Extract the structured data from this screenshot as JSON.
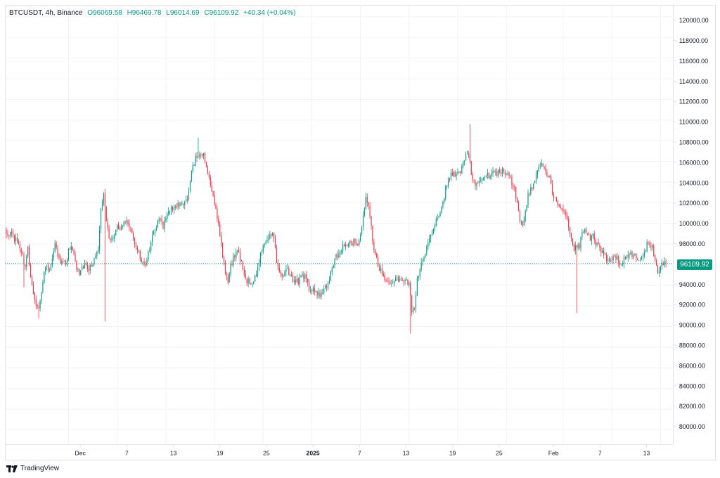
{
  "legend": {
    "symbol": "BTCUSDT, 4h, Binance",
    "open": "O96069.58",
    "high": "H96469.78",
    "low": "L96014.69",
    "close": "C96109.92",
    "change": "+40.34 (+0.04%)"
  },
  "last_price_label": "96109.92",
  "branding": "TradingView",
  "colors": {
    "up": "#089981",
    "down": "#f23645",
    "grid": "#f0f3fa",
    "border": "#e0e3eb"
  },
  "chart_data": {
    "type": "candlestick",
    "symbol": "BTCUSDT",
    "interval": "4h",
    "exchange": "Binance",
    "y_ticks": [
      "80000.00",
      "82000.00",
      "84000.00",
      "86000.00",
      "88000.00",
      "90000.00",
      "92000.00",
      "94000.00",
      "96000.00",
      "98000.00",
      "100000.00",
      "102000.00",
      "104000.00",
      "106000.00",
      "108000.00",
      "110000.00",
      "112000.00",
      "114000.00",
      "116000.00",
      "118000.00",
      "120000.00"
    ],
    "x_ticks": [
      {
        "label": "Dec",
        "index": 46,
        "bold": false
      },
      {
        "label": "7",
        "index": 82,
        "bold": false
      },
      {
        "label": "13",
        "index": 118,
        "bold": false
      },
      {
        "label": "19",
        "index": 154,
        "bold": false
      },
      {
        "label": "25",
        "index": 190,
        "bold": false
      },
      {
        "label": "2025",
        "index": 226,
        "bold": true
      },
      {
        "label": "7",
        "index": 262,
        "bold": false
      },
      {
        "label": "13",
        "index": 298,
        "bold": false
      },
      {
        "label": "19",
        "index": 334,
        "bold": false
      },
      {
        "label": "25",
        "index": 370,
        "bold": false
      },
      {
        "label": "Feb",
        "index": 412,
        "bold": false
      },
      {
        "label": "7",
        "index": 448,
        "bold": false
      },
      {
        "label": "13",
        "index": 484,
        "bold": false
      }
    ],
    "y_range": [
      78600,
      121150
    ],
    "x_range": [
      0,
      489
    ],
    "last_price": 96109.92,
    "close_anchors": [
      [
        0,
        99200
      ],
      [
        4,
        98900
      ],
      [
        8,
        98200
      ],
      [
        12,
        96800
      ],
      [
        14,
        95800
      ],
      [
        16,
        97600
      ],
      [
        18,
        94500
      ],
      [
        20,
        93200
      ],
      [
        22,
        92300
      ],
      [
        24,
        92000
      ],
      [
        26,
        93600
      ],
      [
        28,
        95400
      ],
      [
        30,
        96100
      ],
      [
        32,
        95300
      ],
      [
        34,
        96500
      ],
      [
        36,
        97900
      ],
      [
        38,
        96900
      ],
      [
        40,
        96300
      ],
      [
        42,
        96100
      ],
      [
        44,
        96200
      ],
      [
        46,
        97300
      ],
      [
        48,
        97900
      ],
      [
        50,
        96900
      ],
      [
        52,
        95600
      ],
      [
        54,
        95300
      ],
      [
        56,
        95900
      ],
      [
        58,
        96000
      ],
      [
        60,
        95600
      ],
      [
        62,
        95700
      ],
      [
        64,
        96300
      ],
      [
        66,
        96500
      ],
      [
        68,
        97400
      ],
      [
        70,
        101300
      ],
      [
        72,
        102900
      ],
      [
        74,
        99900
      ],
      [
        76,
        98700
      ],
      [
        78,
        98300
      ],
      [
        80,
        99100
      ],
      [
        82,
        99900
      ],
      [
        84,
        99200
      ],
      [
        86,
        99800
      ],
      [
        88,
        100300
      ],
      [
        90,
        100000
      ],
      [
        92,
        99400
      ],
      [
        94,
        98400
      ],
      [
        96,
        97800
      ],
      [
        98,
        97200
      ],
      [
        100,
        96400
      ],
      [
        102,
        95900
      ],
      [
        104,
        96300
      ],
      [
        106,
        97600
      ],
      [
        108,
        98800
      ],
      [
        110,
        99400
      ],
      [
        112,
        100300
      ],
      [
        114,
        100600
      ],
      [
        116,
        99800
      ],
      [
        118,
        100400
      ],
      [
        120,
        101300
      ],
      [
        122,
        101400
      ],
      [
        124,
        101600
      ],
      [
        126,
        101800
      ],
      [
        128,
        101900
      ],
      [
        130,
        102100
      ],
      [
        132,
        101900
      ],
      [
        134,
        102600
      ],
      [
        136,
        104200
      ],
      [
        138,
        105400
      ],
      [
        140,
        106400
      ],
      [
        142,
        106600
      ],
      [
        144,
        106900
      ],
      [
        146,
        106600
      ],
      [
        148,
        105300
      ],
      [
        150,
        104200
      ],
      [
        152,
        103000
      ],
      [
        154,
        101900
      ],
      [
        156,
        100500
      ],
      [
        158,
        99000
      ],
      [
        160,
        97000
      ],
      [
        162,
        95300
      ],
      [
        164,
        94100
      ],
      [
        166,
        95800
      ],
      [
        168,
        96600
      ],
      [
        170,
        97400
      ],
      [
        172,
        96900
      ],
      [
        174,
        96100
      ],
      [
        176,
        95300
      ],
      [
        178,
        94500
      ],
      [
        180,
        94300
      ],
      [
        182,
        94000
      ],
      [
        184,
        94700
      ],
      [
        186,
        95600
      ],
      [
        188,
        97000
      ],
      [
        190,
        98000
      ],
      [
        192,
        98400
      ],
      [
        194,
        98700
      ],
      [
        196,
        99100
      ],
      [
        198,
        98700
      ],
      [
        200,
        96500
      ],
      [
        202,
        95400
      ],
      [
        204,
        95000
      ],
      [
        206,
        95300
      ],
      [
        208,
        95700
      ],
      [
        210,
        94800
      ],
      [
        212,
        94500
      ],
      [
        214,
        94300
      ],
      [
        216,
        94400
      ],
      [
        218,
        94700
      ],
      [
        220,
        94900
      ],
      [
        222,
        94500
      ],
      [
        224,
        93800
      ],
      [
        226,
        93700
      ],
      [
        228,
        93400
      ],
      [
        230,
        93300
      ],
      [
        232,
        93100
      ],
      [
        234,
        93300
      ],
      [
        236,
        93600
      ],
      [
        238,
        94200
      ],
      [
        240,
        95000
      ],
      [
        242,
        96000
      ],
      [
        244,
        96700
      ],
      [
        246,
        97200
      ],
      [
        248,
        97600
      ],
      [
        250,
        97900
      ],
      [
        252,
        98100
      ],
      [
        254,
        98400
      ],
      [
        256,
        98200
      ],
      [
        258,
        98200
      ],
      [
        260,
        97700
      ],
      [
        262,
        98800
      ],
      [
        264,
        100700
      ],
      [
        266,
        102300
      ],
      [
        268,
        101800
      ],
      [
        270,
        99900
      ],
      [
        272,
        97200
      ],
      [
        274,
        96400
      ],
      [
        276,
        95700
      ],
      [
        278,
        95000
      ],
      [
        280,
        94600
      ],
      [
        282,
        94400
      ],
      [
        284,
        94200
      ],
      [
        286,
        94500
      ],
      [
        288,
        94600
      ],
      [
        290,
        94500
      ],
      [
        292,
        94300
      ],
      [
        294,
        94300
      ],
      [
        296,
        94400
      ],
      [
        298,
        94200
      ],
      [
        300,
        91500
      ],
      [
        302,
        91600
      ],
      [
        304,
        94600
      ],
      [
        306,
        95700
      ],
      [
        308,
        96500
      ],
      [
        310,
        97300
      ],
      [
        312,
        98100
      ],
      [
        314,
        98700
      ],
      [
        316,
        99500
      ],
      [
        318,
        100300
      ],
      [
        320,
        100900
      ],
      [
        322,
        101700
      ],
      [
        324,
        102700
      ],
      [
        326,
        103900
      ],
      [
        328,
        104500
      ],
      [
        330,
        104900
      ],
      [
        332,
        104800
      ],
      [
        334,
        104800
      ],
      [
        336,
        105000
      ],
      [
        338,
        106100
      ],
      [
        340,
        106600
      ],
      [
        342,
        106800
      ],
      [
        344,
        104900
      ],
      [
        346,
        103900
      ],
      [
        348,
        104000
      ],
      [
        350,
        104200
      ],
      [
        352,
        104300
      ],
      [
        354,
        104400
      ],
      [
        356,
        104600
      ],
      [
        358,
        104700
      ],
      [
        360,
        104800
      ],
      [
        362,
        104900
      ],
      [
        364,
        104900
      ],
      [
        366,
        105000
      ],
      [
        368,
        104900
      ],
      [
        370,
        105000
      ],
      [
        372,
        104800
      ],
      [
        374,
        104000
      ],
      [
        376,
        103200
      ],
      [
        378,
        102200
      ],
      [
        380,
        100400
      ],
      [
        382,
        99800
      ],
      [
        384,
        101100
      ],
      [
        386,
        102700
      ],
      [
        388,
        103300
      ],
      [
        390,
        103900
      ],
      [
        392,
        104600
      ],
      [
        394,
        105500
      ],
      [
        396,
        105900
      ],
      [
        398,
        105400
      ],
      [
        400,
        104800
      ],
      [
        402,
        104400
      ],
      [
        404,
        103000
      ],
      [
        406,
        102300
      ],
      [
        408,
        101900
      ],
      [
        410,
        101600
      ],
      [
        412,
        101200
      ],
      [
        414,
        100800
      ],
      [
        416,
        99900
      ],
      [
        418,
        98200
      ],
      [
        420,
        97400
      ],
      [
        422,
        97900
      ],
      [
        424,
        97800
      ],
      [
        426,
        98900
      ],
      [
        428,
        99500
      ],
      [
        430,
        98900
      ],
      [
        432,
        98500
      ],
      [
        434,
        98700
      ],
      [
        436,
        98200
      ],
      [
        438,
        97900
      ],
      [
        440,
        97300
      ],
      [
        442,
        97000
      ],
      [
        444,
        96700
      ],
      [
        446,
        96600
      ],
      [
        448,
        96700
      ],
      [
        450,
        97000
      ],
      [
        452,
        96500
      ],
      [
        454,
        96000
      ],
      [
        456,
        96300
      ],
      [
        458,
        96800
      ],
      [
        460,
        97000
      ],
      [
        462,
        97000
      ],
      [
        464,
        96900
      ],
      [
        466,
        96800
      ],
      [
        468,
        96300
      ],
      [
        470,
        96800
      ],
      [
        472,
        97300
      ],
      [
        474,
        97900
      ],
      [
        476,
        98100
      ],
      [
        478,
        97600
      ],
      [
        480,
        96500
      ],
      [
        482,
        95400
      ],
      [
        484,
        95700
      ],
      [
        486,
        96100
      ],
      [
        488,
        96110
      ]
    ],
    "extreme_wicks": [
      {
        "index": 13,
        "low": 93800
      },
      {
        "index": 24,
        "low": 90800
      },
      {
        "index": 73,
        "low": 90500
      },
      {
        "index": 142,
        "high": 108300
      },
      {
        "index": 299,
        "low": 89300
      },
      {
        "index": 343,
        "high": 109600
      },
      {
        "index": 422,
        "low": 91300
      }
    ]
  }
}
